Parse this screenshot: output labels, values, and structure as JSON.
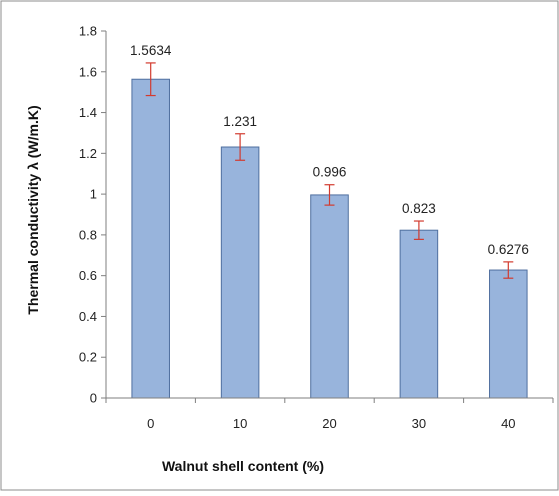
{
  "chart_data": {
    "type": "bar",
    "title": "",
    "xlabel": "Walnut shell content (%)",
    "ylabel": "Thermal conductivity λ (W/m.K)",
    "categories": [
      "0",
      "10",
      "20",
      "30",
      "40"
    ],
    "values": [
      1.5634,
      1.231,
      0.996,
      0.823,
      0.6276
    ],
    "value_labels": [
      "1.5634",
      "1.231",
      "0.996",
      "0.823",
      "0.6276"
    ],
    "error": [
      0.08,
      0.065,
      0.05,
      0.045,
      0.04
    ],
    "ylim": [
      0,
      1.8
    ],
    "yticks": [
      0,
      0.2,
      0.4,
      0.6,
      0.8,
      1,
      1.2,
      1.4,
      1.6,
      1.8
    ],
    "ytick_labels": [
      "0",
      "0.2",
      "0.4",
      "0.6",
      "0.8",
      "1",
      "1.2",
      "1.4",
      "1.6",
      "1.8"
    ],
    "grid": false,
    "legend": "none",
    "colors": {
      "bar_fill": "#98b4dc",
      "bar_stroke": "#4f6f9f",
      "error_bar": "#d23a2e",
      "axis": "#7f7f7f",
      "frame": "#8c8c8c"
    }
  }
}
